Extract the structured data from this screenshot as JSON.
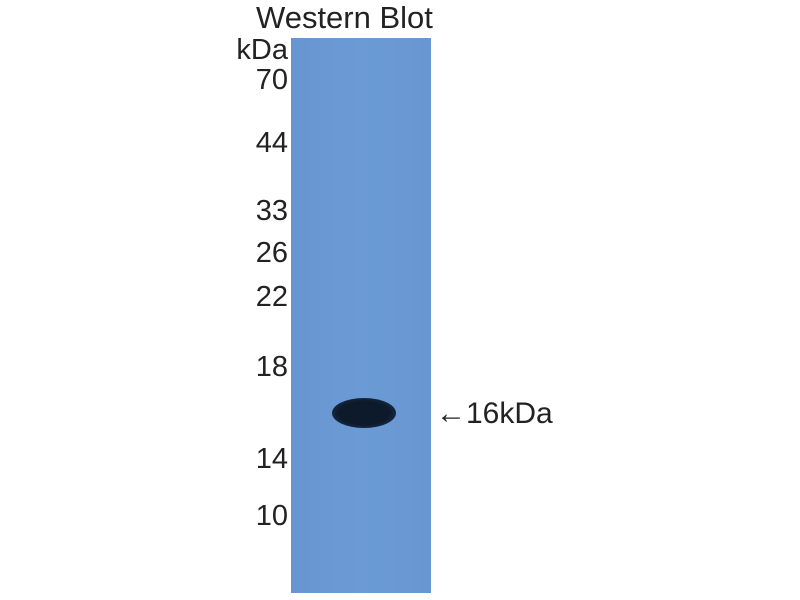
{
  "title": "Western Blot",
  "unit_label": "kDa",
  "markers": [
    "70",
    "44",
    "33",
    "26",
    "22",
    "18",
    "14",
    "10"
  ],
  "band_label": "←16kDa",
  "colors": {
    "membrane": "#6b9bd5",
    "band": "#0d1a2c"
  }
}
